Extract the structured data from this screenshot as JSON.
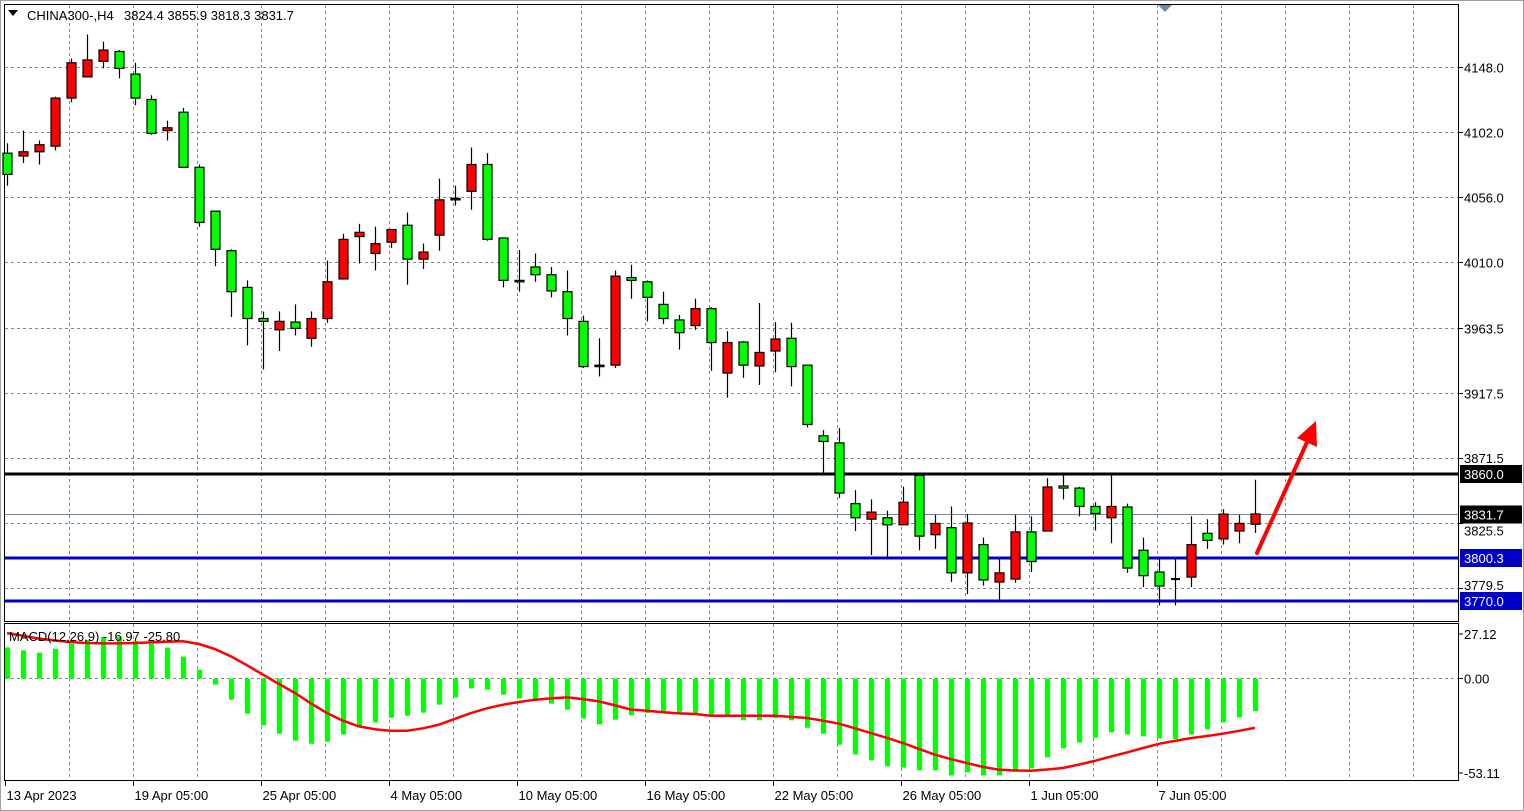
{
  "header": {
    "symbol": "CHINA300-,H4",
    "ohlc": "3824.4 3855.9 3818.3 3831.7",
    "menu_icon": "triangle-down-icon"
  },
  "colors": {
    "bull": "#ff0000",
    "bear": "#00ff00",
    "doji": "#000000",
    "grid": "#778899",
    "resistance": "#000000",
    "support": "#0000c8",
    "macd_hist": "#00ff00",
    "macd_signal": "#ff0000",
    "arrow": "#ff0000"
  },
  "chart_data": [
    {
      "type": "candlestick",
      "timeframe": "H4",
      "x_tick_labels": [
        "13 Apr 2023",
        "19 Apr 05:00",
        "25 Apr 05:00",
        "4 May 05:00",
        "10 May 05:00",
        "16 May 05:00",
        "22 May 05:00",
        "26 May 05:00",
        "1 Jun 05:00",
        "7 Jun 05:00"
      ],
      "y_tick_labels": [
        "4148.0",
        "4102.0",
        "4056.0",
        "4010.0",
        "3963.5",
        "3917.5",
        "3871.5",
        "3825.5",
        "3779.5"
      ],
      "ylim": [
        3766,
        4189
      ],
      "grid": true,
      "ohlc": [
        [
          4087,
          4094,
          4064,
          4072
        ],
        [
          4085,
          4103,
          4080,
          4088
        ],
        [
          4088,
          4096,
          4079,
          4093
        ],
        [
          4092,
          4127,
          4089,
          4126
        ],
        [
          4126,
          4154,
          4123,
          4151
        ],
        [
          4141,
          4171,
          4141,
          4153
        ],
        [
          4152,
          4166,
          4147,
          4160
        ],
        [
          4159,
          4160,
          4140,
          4147
        ],
        [
          4143,
          4151,
          4121,
          4126
        ],
        [
          4125,
          4128,
          4100,
          4101
        ],
        [
          4103,
          4110,
          4096,
          4105
        ],
        [
          4116,
          4119,
          4077,
          4077
        ],
        [
          4077,
          4079,
          4035,
          4038
        ],
        [
          4046,
          4046,
          4007,
          4019
        ],
        [
          4018,
          4019,
          3971,
          3989
        ],
        [
          3992,
          3997,
          3951,
          3970
        ],
        [
          3970,
          3975,
          3934,
          3968
        ],
        [
          3962,
          3975,
          3947,
          3968
        ],
        [
          3967.5,
          3980,
          3958,
          3963
        ],
        [
          3956,
          3975,
          3950,
          3970
        ],
        [
          3970,
          4011,
          3967,
          3996
        ],
        [
          3998,
          4030,
          3998,
          4026
        ],
        [
          4028,
          4037,
          4009,
          4031
        ],
        [
          4016,
          4035,
          4004,
          4023
        ],
        [
          4024,
          4033,
          4020,
          4033
        ],
        [
          4036,
          4045,
          3994,
          4012
        ],
        [
          4012,
          4023,
          4005,
          4017
        ],
        [
          4029,
          4069,
          4018,
          4054
        ],
        [
          4054,
          4064,
          4050,
          4055
        ],
        [
          4060,
          4091,
          4047,
          4079
        ],
        [
          4079,
          4087,
          4025,
          4026
        ],
        [
          4027,
          4027,
          3992,
          3997
        ],
        [
          3997,
          4018.5,
          3989,
          3996.8
        ],
        [
          4006.5,
          4016,
          3996,
          4001
        ],
        [
          4001,
          4006.5,
          3985,
          3989.5
        ],
        [
          3989,
          4004,
          3958,
          3970
        ],
        [
          3968,
          3972,
          3935,
          3936
        ],
        [
          3936,
          3956,
          3929,
          3937
        ],
        [
          3937,
          4004,
          3935,
          4000
        ],
        [
          3999,
          4008,
          3984,
          3997
        ],
        [
          3996,
          3997,
          3968,
          3985
        ],
        [
          3980,
          3989,
          3966,
          3970
        ],
        [
          3969,
          3972.5,
          3948,
          3960
        ],
        [
          3965,
          3984,
          3962,
          3977
        ],
        [
          3977,
          3978,
          3933,
          3953
        ],
        [
          3931.4,
          3961,
          3914,
          3953
        ],
        [
          3953.4,
          3954,
          3928,
          3937
        ],
        [
          3936.4,
          3981,
          3923,
          3946
        ],
        [
          3947,
          3967.5,
          3932,
          3955.5
        ],
        [
          3956,
          3967,
          3922,
          3936
        ],
        [
          3937,
          3937,
          3893,
          3895
        ],
        [
          3887,
          3891,
          3860,
          3883
        ],
        [
          3882,
          3892.5,
          3843,
          3846.5
        ],
        [
          3839,
          3848.6,
          3819.6,
          3829
        ],
        [
          3828,
          3842,
          3802.6,
          3833
        ],
        [
          3829,
          3834,
          3800,
          3824
        ],
        [
          3824,
          3851,
          3824,
          3840
        ],
        [
          3859,
          3861,
          3806,
          3816
        ],
        [
          3817,
          3831,
          3807,
          3825
        ],
        [
          3822,
          3837,
          3783.5,
          3790
        ],
        [
          3790,
          3831.6,
          3775,
          3825.3
        ],
        [
          3810,
          3815,
          3781,
          3785
        ],
        [
          3783.5,
          3800,
          3770,
          3790
        ],
        [
          3785.6,
          3831,
          3783,
          3819
        ],
        [
          3819,
          3830,
          3790.6,
          3798
        ],
        [
          3819.6,
          3857,
          3819.6,
          3850.8
        ],
        [
          3851.5,
          3861,
          3842,
          3850
        ],
        [
          3850,
          3851,
          3830,
          3837
        ],
        [
          3837,
          3840,
          3820,
          3832
        ],
        [
          3829,
          3861,
          3811,
          3837
        ],
        [
          3836.6,
          3839,
          3790,
          3793.4
        ],
        [
          3806,
          3815,
          3780,
          3788
        ],
        [
          3790.6,
          3800,
          3767,
          3780.7
        ],
        [
          3785.6,
          3800,
          3767,
          3785.6
        ],
        [
          3787,
          3830,
          3780,
          3810
        ],
        [
          3818,
          3828,
          3807,
          3813
        ],
        [
          3814,
          3835,
          3810,
          3831.6
        ],
        [
          3819.6,
          3831,
          3811,
          3825
        ],
        [
          3824.4,
          3855.9,
          3818.3,
          3831.7
        ]
      ],
      "horizontal_lines": [
        {
          "label": "3860.0",
          "value": 3860.0,
          "color": "#000000"
        },
        {
          "label": "3800.3",
          "value": 3800.3,
          "color": "#0000c8"
        },
        {
          "label": "3770.0",
          "value": 3770.0,
          "color": "#0000c8"
        }
      ],
      "current_price": {
        "label": "3831.7",
        "value": 3831.7
      }
    },
    {
      "type": "bar+line",
      "title": "MACD(12,26,9) -16.97 -25.80",
      "y_tick_labels": [
        "27.12",
        "0.00",
        "-53.11"
      ],
      "ylim": [
        -53.11,
        27.12
      ],
      "histogram": [
        16.4,
        14.8,
        13.6,
        15.7,
        18.2,
        20.3,
        21.9,
        21.9,
        19.8,
        18.3,
        16.2,
        11.5,
        4.7,
        -3.1,
        -11.0,
        -18.3,
        -24.5,
        -28.8,
        -32.5,
        -34.1,
        -33.0,
        -29.2,
        -25.0,
        -22.9,
        -20.4,
        -19.4,
        -17.8,
        -13.6,
        -9.8,
        -5.1,
        -5.8,
        -8.4,
        -10.3,
        -11.7,
        -13.1,
        -16.2,
        -20.8,
        -23.9,
        -21.5,
        -19.2,
        -18.0,
        -17.5,
        -18.0,
        -18.9,
        -18.9,
        -18.9,
        -21.8,
        -21.8,
        -20.6,
        -21.8,
        -25.7,
        -28.8,
        -34.6,
        -39.7,
        -42.8,
        -45.9,
        -46.6,
        -48.0,
        -48.0,
        -50.7,
        -49.1,
        -50.7,
        -50.7,
        -48.0,
        -47.0,
        -41.2,
        -36.5,
        -33.4,
        -30.9,
        -28.1,
        -29.2,
        -30.2,
        -31.3,
        -31.6,
        -29.2,
        -26.6,
        -22.9,
        -20.3,
        -16.97
      ],
      "signal": [
        23.9,
        22.5,
        21,
        20,
        19.2,
        18.7,
        18.5,
        18.5,
        18.7,
        19,
        19.4,
        19.6,
        18.2,
        15.5,
        11.7,
        7,
        2.1,
        -2.8,
        -7.5,
        -13,
        -18,
        -22,
        -25,
        -26.5,
        -27.3,
        -27.3,
        -26,
        -24.1,
        -21,
        -18,
        -15.5,
        -13.6,
        -12.2,
        -11,
        -10.3,
        -9.8,
        -10.7,
        -11.9,
        -14,
        -16.2,
        -16.8,
        -17.6,
        -18.2,
        -18.5,
        -19.4,
        -19.4,
        -19.4,
        -19.4,
        -19.4,
        -20,
        -20.6,
        -22,
        -23.6,
        -26,
        -28.5,
        -31,
        -33.7,
        -36.8,
        -39.8,
        -42.2,
        -44.2,
        -46.2,
        -47.7,
        -48.1,
        -48.2,
        -47.6,
        -46.8,
        -45,
        -43,
        -40.8,
        -38.6,
        -36.3,
        -34.1,
        -32.6,
        -31.1,
        -30,
        -28.8,
        -27.3,
        -25.8
      ]
    }
  ]
}
